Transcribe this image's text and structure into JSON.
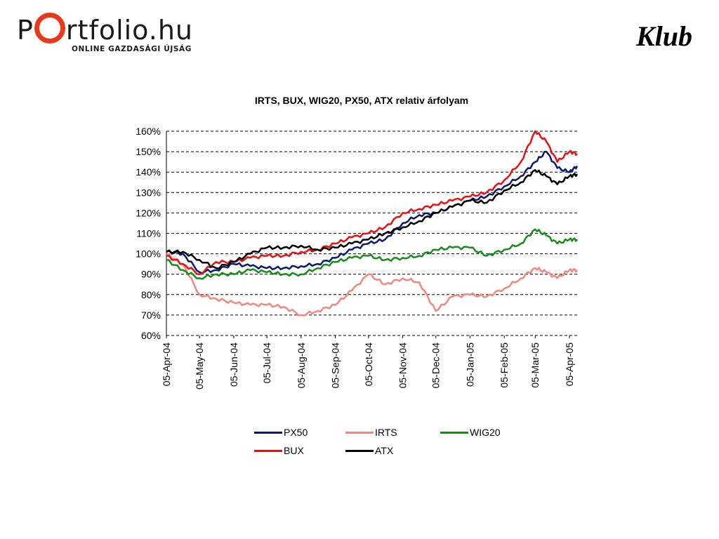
{
  "header": {
    "logo_prefix": "P",
    "logo_suffix": "rtfolio.hu",
    "logo_tagline": "ONLINE GAZDASÁGI ÚJSÁG",
    "club_label": "Klub"
  },
  "chart_data": {
    "type": "line",
    "title": "IRTS, BUX, WIG20, PX50, ATX relativ árfolyam",
    "xlabel": "",
    "ylabel": "",
    "ylim": [
      0.6,
      1.6
    ],
    "y_ticks": [
      "160%",
      "150%",
      "140%",
      "130%",
      "120%",
      "110%",
      "100%",
      "90%",
      "80%",
      "70%",
      "60%"
    ],
    "y_tick_values": [
      1.6,
      1.5,
      1.4,
      1.3,
      1.2,
      1.1,
      1.0,
      0.9,
      0.8,
      0.7,
      0.6
    ],
    "x_ticks": [
      "05-Apr-04",
      "05-May-04",
      "05-Jun-04",
      "05-Jul-04",
      "05-Aug-04",
      "05-Sep-04",
      "05-Oct-04",
      "05-Nov-04",
      "05-Dec-04",
      "05-Jan-05",
      "05-Feb-05",
      "05-Mar-05",
      "05-Apr-05"
    ],
    "xlim": [
      "2004-04-05",
      "2005-04-12"
    ],
    "grid": "horizontal dashed",
    "legend_position": "bottom",
    "series": [
      {
        "name": "PX50",
        "color": "#0a1a6e",
        "x": [
          "2004-04-05",
          "2004-04-20",
          "2004-05-05",
          "2004-05-20",
          "2004-06-05",
          "2004-06-20",
          "2004-07-05",
          "2004-07-20",
          "2004-08-05",
          "2004-08-20",
          "2004-09-05",
          "2004-09-20",
          "2004-10-05",
          "2004-10-20",
          "2004-11-05",
          "2004-11-20",
          "2004-12-05",
          "2004-12-20",
          "2005-01-05",
          "2005-01-20",
          "2005-02-05",
          "2005-02-20",
          "2005-03-05",
          "2005-03-15",
          "2005-03-25",
          "2005-04-05",
          "2005-04-12"
        ],
        "y": [
          1.01,
          1.0,
          0.91,
          0.92,
          0.95,
          0.94,
          0.93,
          0.93,
          0.94,
          0.95,
          0.98,
          1.02,
          1.05,
          1.07,
          1.15,
          1.19,
          1.2,
          1.23,
          1.26,
          1.28,
          1.33,
          1.38,
          1.45,
          1.5,
          1.42,
          1.4,
          1.43
        ]
      },
      {
        "name": "IRTS",
        "color": "#f4867e",
        "x": [
          "2004-04-05",
          "2004-04-20",
          "2004-05-05",
          "2004-05-20",
          "2004-06-05",
          "2004-06-20",
          "2004-07-05",
          "2004-07-20",
          "2004-08-05",
          "2004-08-20",
          "2004-09-05",
          "2004-09-20",
          "2004-10-05",
          "2004-10-20",
          "2004-11-05",
          "2004-11-20",
          "2004-12-05",
          "2004-12-20",
          "2005-01-05",
          "2005-01-20",
          "2005-02-05",
          "2005-02-20",
          "2005-03-05",
          "2005-03-15",
          "2005-03-25",
          "2005-04-05",
          "2005-04-12"
        ],
        "y": [
          1.0,
          0.95,
          0.8,
          0.78,
          0.76,
          0.75,
          0.75,
          0.74,
          0.7,
          0.72,
          0.75,
          0.82,
          0.9,
          0.85,
          0.88,
          0.86,
          0.72,
          0.79,
          0.8,
          0.79,
          0.83,
          0.88,
          0.93,
          0.91,
          0.88,
          0.92,
          0.92
        ]
      },
      {
        "name": "WIG20",
        "color": "#1a8c1a",
        "x": [
          "2004-04-05",
          "2004-04-20",
          "2004-05-05",
          "2004-05-20",
          "2004-06-05",
          "2004-06-20",
          "2004-07-05",
          "2004-07-20",
          "2004-08-05",
          "2004-08-20",
          "2004-09-05",
          "2004-09-20",
          "2004-10-05",
          "2004-10-20",
          "2004-11-05",
          "2004-11-20",
          "2004-12-05",
          "2004-12-20",
          "2005-01-05",
          "2005-01-20",
          "2005-02-05",
          "2005-02-20",
          "2005-03-05",
          "2005-03-15",
          "2005-03-25",
          "2005-04-05",
          "2005-04-12"
        ],
        "y": [
          0.97,
          0.92,
          0.88,
          0.9,
          0.9,
          0.92,
          0.91,
          0.9,
          0.9,
          0.93,
          0.96,
          0.98,
          0.99,
          0.97,
          0.98,
          0.99,
          1.02,
          1.03,
          1.03,
          0.99,
          1.02,
          1.05,
          1.12,
          1.09,
          1.05,
          1.07,
          1.07
        ]
      },
      {
        "name": "BUX",
        "color": "#e81010",
        "x": [
          "2004-04-05",
          "2004-04-20",
          "2004-05-05",
          "2004-05-20",
          "2004-06-05",
          "2004-06-20",
          "2004-07-05",
          "2004-07-20",
          "2004-08-05",
          "2004-08-20",
          "2004-09-05",
          "2004-09-20",
          "2004-10-05",
          "2004-10-20",
          "2004-11-05",
          "2004-11-20",
          "2004-12-05",
          "2004-12-20",
          "2005-01-05",
          "2005-01-20",
          "2005-02-05",
          "2005-02-20",
          "2005-03-05",
          "2005-03-15",
          "2005-03-25",
          "2005-04-05",
          "2005-04-12"
        ],
        "y": [
          0.99,
          0.95,
          0.9,
          0.96,
          0.96,
          0.98,
          0.99,
          0.99,
          1.01,
          1.02,
          1.05,
          1.08,
          1.1,
          1.13,
          1.2,
          1.22,
          1.24,
          1.26,
          1.28,
          1.3,
          1.36,
          1.45,
          1.6,
          1.55,
          1.45,
          1.5,
          1.49
        ]
      },
      {
        "name": "ATX",
        "color": "#000000",
        "x": [
          "2004-04-05",
          "2004-04-20",
          "2004-05-05",
          "2004-05-20",
          "2004-06-05",
          "2004-06-20",
          "2004-07-05",
          "2004-07-20",
          "2004-08-05",
          "2004-08-20",
          "2004-09-05",
          "2004-09-20",
          "2004-10-05",
          "2004-10-20",
          "2004-11-05",
          "2004-11-20",
          "2004-12-05",
          "2004-12-20",
          "2005-01-05",
          "2005-01-20",
          "2005-02-05",
          "2005-02-20",
          "2005-03-05",
          "2005-03-15",
          "2005-03-25",
          "2005-04-05",
          "2005-04-12"
        ],
        "y": [
          1.01,
          1.01,
          0.97,
          0.93,
          0.96,
          1.0,
          1.03,
          1.03,
          1.04,
          1.02,
          1.03,
          1.05,
          1.07,
          1.1,
          1.13,
          1.16,
          1.2,
          1.23,
          1.26,
          1.25,
          1.31,
          1.35,
          1.41,
          1.38,
          1.34,
          1.38,
          1.39
        ]
      }
    ]
  }
}
